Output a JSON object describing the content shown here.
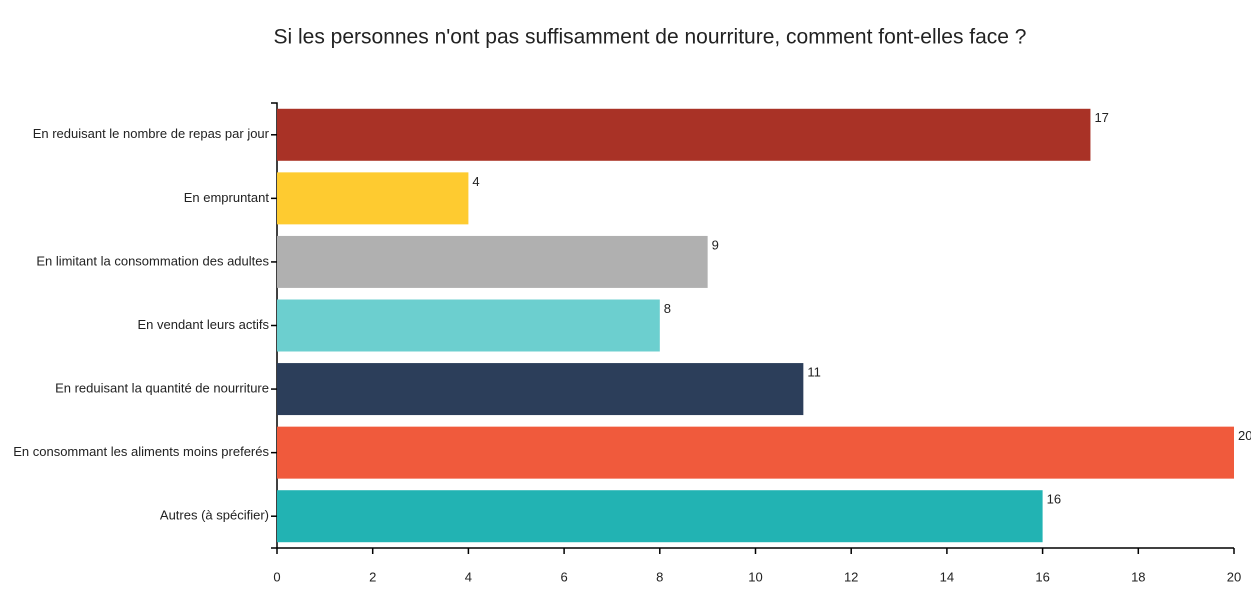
{
  "chart_data": {
    "type": "bar",
    "orientation": "horizontal",
    "title": "Si les personnes n'ont pas suffisamment de nourriture, comment font-elles face ?",
    "categories": [
      "En reduisant le nombre de repas par jour",
      "En empruntant",
      "En limitant la consommation des adultes",
      "En vendant leurs actifs",
      "En reduisant la quantité de nourriture",
      "En consommant les aliments moins preferés",
      "Autres (à spécifier)"
    ],
    "values": [
      17,
      4,
      9,
      8,
      11,
      20,
      16
    ],
    "colors": [
      "#a93226",
      "#fecb30",
      "#b0b0b0",
      "#6ccfcf",
      "#2c3e5a",
      "#f05a3c",
      "#22b3b3"
    ],
    "xlim": [
      0,
      20
    ],
    "xticks": [
      0,
      2,
      4,
      6,
      8,
      10,
      12,
      14,
      16,
      18,
      20
    ]
  }
}
